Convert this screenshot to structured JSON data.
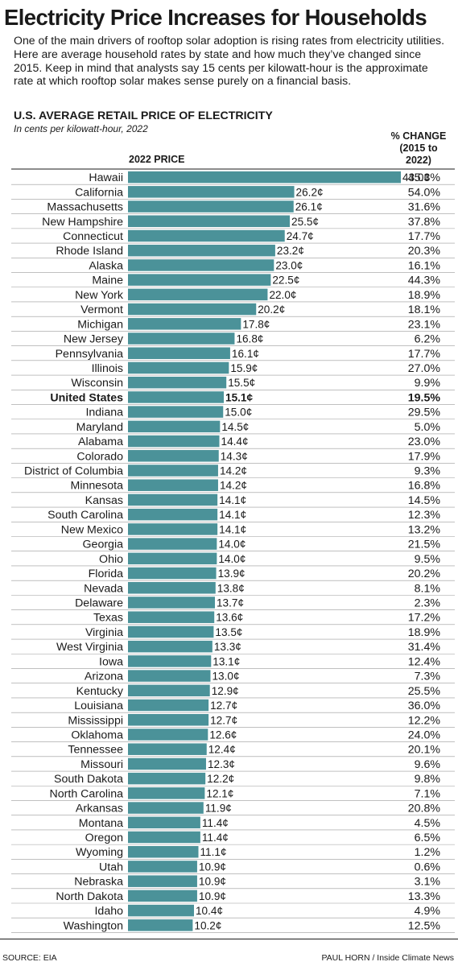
{
  "header": {
    "title": "Electricity Price Increases for Households",
    "intro": "One of the main drivers of rooftop solar adoption is rising rates from electricity utilities. Here are average household rates by state and how much they’ve changed since 2015. Keep in mind that analysts say 15 cents per kilowatt-hour is the approximate rate at which rooftop solar makes sense purely on a financial basis."
  },
  "chart_data": {
    "type": "bar",
    "title": "U.S. AVERAGE RETAIL PRICE OF ELECTRICITY",
    "subtitle": "In cents per kilowatt-hour, 2022",
    "value_header": "2022 PRICE",
    "change_header": [
      "% CHANGE",
      "(2015 to",
      "2022)"
    ],
    "value_suffix": "¢",
    "highlight": "United States",
    "bar_color": "#4b9299",
    "xlim": [
      0,
      43.0
    ],
    "rows": [
      {
        "label": "Hawaii",
        "value": 43.0,
        "change": "45.3%"
      },
      {
        "label": "California",
        "value": 26.2,
        "change": "54.0%"
      },
      {
        "label": "Massachusetts",
        "value": 26.1,
        "change": "31.6%"
      },
      {
        "label": "New Hampshire",
        "value": 25.5,
        "change": "37.8%"
      },
      {
        "label": "Connecticut",
        "value": 24.7,
        "change": "17.7%"
      },
      {
        "label": "Rhode Island",
        "value": 23.2,
        "change": "20.3%"
      },
      {
        "label": "Alaska",
        "value": 23.0,
        "change": "16.1%"
      },
      {
        "label": "Maine",
        "value": 22.5,
        "change": "44.3%"
      },
      {
        "label": "New York",
        "value": 22.0,
        "change": "18.9%"
      },
      {
        "label": "Vermont",
        "value": 20.2,
        "change": "18.1%"
      },
      {
        "label": "Michigan",
        "value": 17.8,
        "change": "23.1%"
      },
      {
        "label": "New Jersey",
        "value": 16.8,
        "change": "6.2%"
      },
      {
        "label": "Pennsylvania",
        "value": 16.1,
        "change": "17.7%"
      },
      {
        "label": "Illinois",
        "value": 15.9,
        "change": "27.0%"
      },
      {
        "label": "Wisconsin",
        "value": 15.5,
        "change": "9.9%"
      },
      {
        "label": "United States",
        "value": 15.1,
        "change": "19.5%"
      },
      {
        "label": "Indiana",
        "value": 15.0,
        "change": "29.5%"
      },
      {
        "label": "Maryland",
        "value": 14.5,
        "change": "5.0%"
      },
      {
        "label": "Alabama",
        "value": 14.4,
        "change": "23.0%"
      },
      {
        "label": "Colorado",
        "value": 14.3,
        "change": "17.9%"
      },
      {
        "label": "District of Columbia",
        "value": 14.2,
        "change": "9.3%"
      },
      {
        "label": "Minnesota",
        "value": 14.2,
        "change": "16.8%"
      },
      {
        "label": "Kansas",
        "value": 14.1,
        "change": "14.5%"
      },
      {
        "label": "South Carolina",
        "value": 14.1,
        "change": "12.3%"
      },
      {
        "label": "New Mexico",
        "value": 14.1,
        "change": "13.2%"
      },
      {
        "label": "Georgia",
        "value": 14.0,
        "change": "21.5%"
      },
      {
        "label": "Ohio",
        "value": 14.0,
        "change": "9.5%"
      },
      {
        "label": "Florida",
        "value": 13.9,
        "change": "20.2%"
      },
      {
        "label": "Nevada",
        "value": 13.8,
        "change": "8.1%"
      },
      {
        "label": "Delaware",
        "value": 13.7,
        "change": "2.3%"
      },
      {
        "label": "Texas",
        "value": 13.6,
        "change": "17.2%"
      },
      {
        "label": "Virginia",
        "value": 13.5,
        "change": "18.9%"
      },
      {
        "label": "West Virginia",
        "value": 13.3,
        "change": "31.4%"
      },
      {
        "label": "Iowa",
        "value": 13.1,
        "change": "12.4%"
      },
      {
        "label": "Arizona",
        "value": 13.0,
        "change": "7.3%"
      },
      {
        "label": "Kentucky",
        "value": 12.9,
        "change": "25.5%"
      },
      {
        "label": "Louisiana",
        "value": 12.7,
        "change": "36.0%"
      },
      {
        "label": "Mississippi",
        "value": 12.7,
        "change": "12.2%"
      },
      {
        "label": "Oklahoma",
        "value": 12.6,
        "change": "24.0%"
      },
      {
        "label": "Tennessee",
        "value": 12.4,
        "change": "20.1%"
      },
      {
        "label": "Missouri",
        "value": 12.3,
        "change": "9.6%"
      },
      {
        "label": "South Dakota",
        "value": 12.2,
        "change": "9.8%"
      },
      {
        "label": "North Carolina",
        "value": 12.1,
        "change": "7.1%"
      },
      {
        "label": "Arkansas",
        "value": 11.9,
        "change": "20.8%"
      },
      {
        "label": "Montana",
        "value": 11.4,
        "change": "4.5%"
      },
      {
        "label": "Oregon",
        "value": 11.4,
        "change": "6.5%"
      },
      {
        "label": "Wyoming",
        "value": 11.1,
        "change": "1.2%"
      },
      {
        "label": "Utah",
        "value": 10.9,
        "change": "0.6%"
      },
      {
        "label": "Nebraska",
        "value": 10.9,
        "change": "3.1%"
      },
      {
        "label": "North Dakota",
        "value": 10.9,
        "change": "13.3%"
      },
      {
        "label": "Idaho",
        "value": 10.4,
        "change": "4.9%"
      },
      {
        "label": "Washington",
        "value": 10.2,
        "change": "12.5%"
      }
    ]
  },
  "footer": {
    "source": "SOURCE: EIA",
    "credit": "PAUL HORN / Inside Climate News"
  }
}
